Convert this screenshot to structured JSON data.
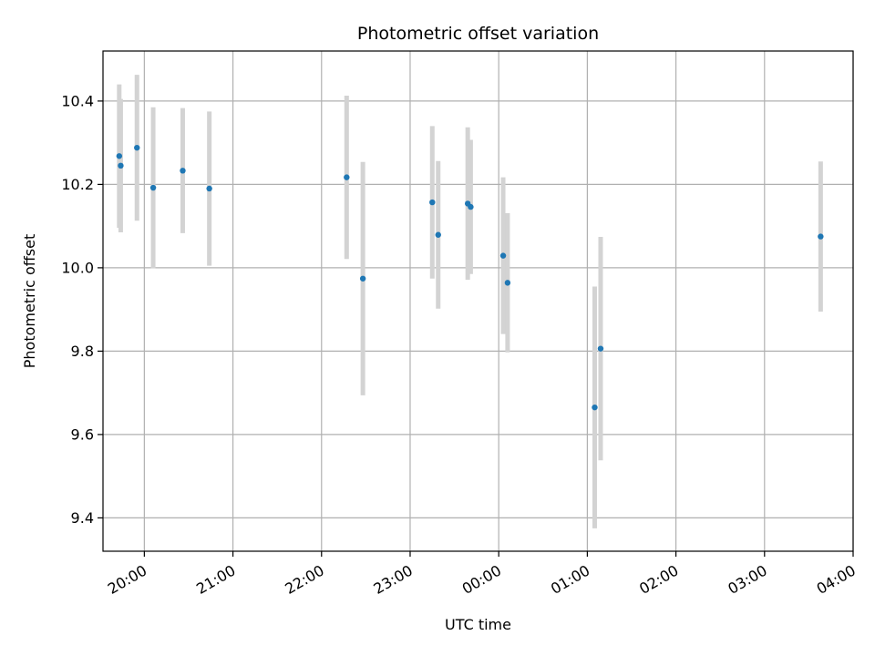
{
  "chart_data": {
    "type": "scatter",
    "title": "Photometric offset variation",
    "xlabel": "UTC time",
    "ylabel": "Photometric offset",
    "x_unit": "UTC time (HH:MM, night spanning midnight)",
    "xlim": [
      "19:32",
      "04:00"
    ],
    "ylim": [
      9.32,
      10.52
    ],
    "x_ticks": [
      "20:00",
      "21:00",
      "22:00",
      "23:00",
      "00:00",
      "01:00",
      "02:00",
      "03:00",
      "04:00"
    ],
    "y_ticks": [
      9.4,
      9.6,
      9.8,
      10.0,
      10.2,
      10.4
    ],
    "y_tick_labels": [
      "9.4",
      "9.6",
      "9.8",
      "10.0",
      "10.2",
      "10.4"
    ],
    "grid": true,
    "marker_color": "#1f77b4",
    "errorbar_color": "#d3d3d3",
    "points": [
      {
        "x": "19:43",
        "y": 10.268,
        "err": 0.172
      },
      {
        "x": "19:44",
        "y": 10.245,
        "err": 0.16
      },
      {
        "x": "19:55",
        "y": 10.288,
        "err": 0.175
      },
      {
        "x": "20:06",
        "y": 10.192,
        "err": 0.193
      },
      {
        "x": "20:26",
        "y": 10.233,
        "err": 0.15
      },
      {
        "x": "20:44",
        "y": 10.19,
        "err": 0.185
      },
      {
        "x": "22:17",
        "y": 10.217,
        "err": 0.196
      },
      {
        "x": "22:28",
        "y": 9.974,
        "err": 0.28
      },
      {
        "x": "23:15",
        "y": 10.157,
        "err": 0.183
      },
      {
        "x": "23:19",
        "y": 10.079,
        "err": 0.177
      },
      {
        "x": "23:39",
        "y": 10.154,
        "err": 0.183
      },
      {
        "x": "23:41",
        "y": 10.146,
        "err": 0.161
      },
      {
        "x": "00:03",
        "y": 10.029,
        "err": 0.188
      },
      {
        "x": "00:06",
        "y": 9.964,
        "err": 0.167
      },
      {
        "x": "01:05",
        "y": 9.665,
        "err": 0.29
      },
      {
        "x": "01:09",
        "y": 9.806,
        "err": 0.268
      },
      {
        "x": "03:38",
        "y": 10.075,
        "err": 0.18
      }
    ]
  }
}
